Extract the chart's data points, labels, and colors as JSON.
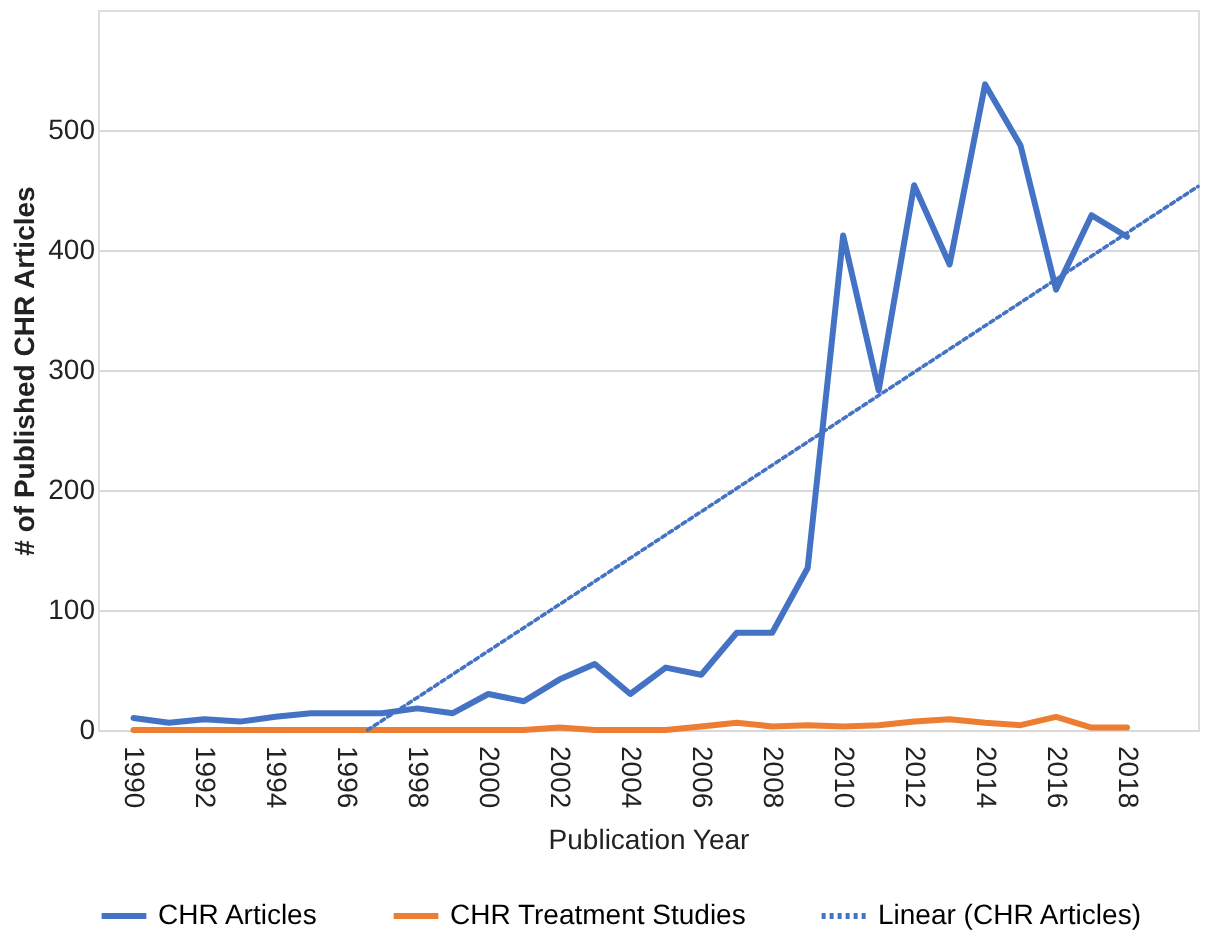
{
  "chart_data": {
    "type": "line",
    "xlabel": "Publication Year",
    "ylabel": "# of Published CHR Articles",
    "x": [
      1990,
      1991,
      1992,
      1993,
      1994,
      1995,
      1996,
      1997,
      1998,
      1999,
      2000,
      2001,
      2002,
      2003,
      2004,
      2005,
      2006,
      2007,
      2008,
      2009,
      2010,
      2011,
      2012,
      2013,
      2014,
      2015,
      2016,
      2017,
      2018
    ],
    "series": [
      {
        "name": "CHR Articles",
        "color": "#4472c4",
        "values": [
          10,
          6,
          9,
          7,
          11,
          14,
          14,
          14,
          18,
          14,
          30,
          24,
          42,
          55,
          30,
          52,
          46,
          81,
          81,
          135,
          412,
          283,
          454,
          388,
          538,
          487,
          367,
          429,
          411
        ]
      },
      {
        "name": "CHR Treatment Studies",
        "color": "#ed7d31",
        "values": [
          0,
          0,
          0,
          0,
          0,
          0,
          0,
          0,
          0,
          0,
          0,
          0,
          2,
          0,
          0,
          0,
          3,
          6,
          3,
          4,
          3,
          4,
          7,
          9,
          6,
          4,
          11,
          2,
          2
        ]
      },
      {
        "name": "Linear (CHR Articles)",
        "color": "#4472c4",
        "type": "line",
        "line_style": "dotted",
        "x": [
          1996.6,
          2020
        ],
        "values": [
          0,
          453
        ]
      }
    ],
    "xlim": [
      1989,
      2020
    ],
    "xticks": [
      1990,
      1992,
      1994,
      1996,
      1998,
      2000,
      2002,
      2004,
      2006,
      2008,
      2010,
      2012,
      2014,
      2016,
      2018
    ],
    "ylim": [
      0,
      600
    ],
    "yticks": [
      0,
      100,
      200,
      300,
      400,
      500
    ],
    "grid": "y",
    "legend": "bottom",
    "line_style": "solid"
  }
}
